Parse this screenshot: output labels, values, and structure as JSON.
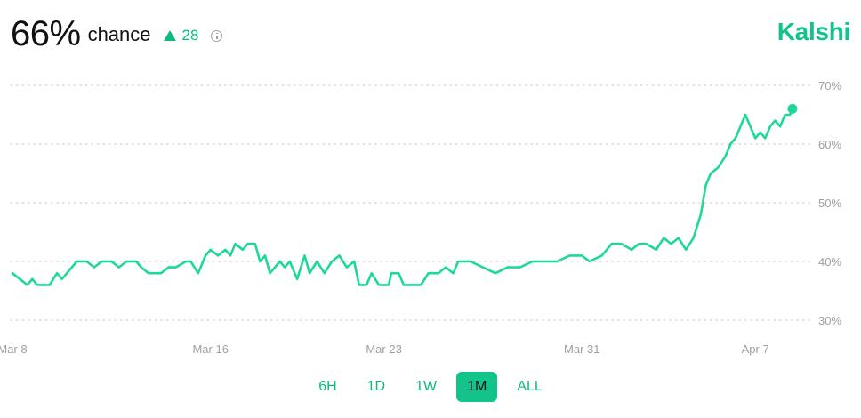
{
  "header": {
    "percent": "66%",
    "chance_label": "chance",
    "delta": "28",
    "delta_direction": "up",
    "info_icon": "info-circle-icon",
    "brand": "Kalshi"
  },
  "colors": {
    "line": "#1fd79b",
    "brand": "#11c48c",
    "delta": "#11b783",
    "grid": "#d0d0d0",
    "axis_text": "#a0a0a0",
    "active_tab_bg": "#12c48b"
  },
  "tabs": [
    {
      "label": "6H",
      "active": false
    },
    {
      "label": "1D",
      "active": false
    },
    {
      "label": "1W",
      "active": false
    },
    {
      "label": "1M",
      "active": true
    },
    {
      "label": "ALL",
      "active": false
    }
  ],
  "chart_data": {
    "type": "line",
    "x_ticks": [
      {
        "label": "Mar 8",
        "day": 0
      },
      {
        "label": "Mar 16",
        "day": 8
      },
      {
        "label": "Mar 23",
        "day": 15
      },
      {
        "label": "Mar 31",
        "day": 23
      },
      {
        "label": "Apr 7",
        "day": 30
      }
    ],
    "y_ticks": [
      30,
      40,
      50,
      60,
      70
    ],
    "y_tick_labels": [
      "30%",
      "40%",
      "50%",
      "60%",
      "70%"
    ],
    "ylim": [
      28,
      72
    ],
    "xlim": [
      0,
      31
    ],
    "grid": true,
    "grid_style": "dotted",
    "end_marker": true,
    "series": [
      {
        "points": [
          [
            0,
            38
          ],
          [
            0.3,
            37
          ],
          [
            0.6,
            36
          ],
          [
            0.8,
            37
          ],
          [
            1.0,
            36
          ],
          [
            1.5,
            36
          ],
          [
            1.8,
            38
          ],
          [
            2.0,
            37
          ],
          [
            2.2,
            38
          ],
          [
            2.4,
            39
          ],
          [
            2.6,
            40
          ],
          [
            3.0,
            40
          ],
          [
            3.3,
            39
          ],
          [
            3.6,
            40
          ],
          [
            4.0,
            40
          ],
          [
            4.3,
            39
          ],
          [
            4.6,
            40
          ],
          [
            5.0,
            40
          ],
          [
            5.2,
            39
          ],
          [
            5.5,
            38
          ],
          [
            6.0,
            38
          ],
          [
            6.3,
            39
          ],
          [
            6.6,
            39
          ],
          [
            7.0,
            40
          ],
          [
            7.2,
            40
          ],
          [
            7.5,
            38
          ],
          [
            7.8,
            41
          ],
          [
            8.0,
            42
          ],
          [
            8.3,
            41
          ],
          [
            8.6,
            42
          ],
          [
            8.8,
            41
          ],
          [
            9.0,
            43
          ],
          [
            9.3,
            42
          ],
          [
            9.5,
            43
          ],
          [
            9.8,
            43
          ],
          [
            10.0,
            40
          ],
          [
            10.2,
            41
          ],
          [
            10.4,
            38
          ],
          [
            10.6,
            39
          ],
          [
            10.8,
            40
          ],
          [
            11.0,
            39
          ],
          [
            11.2,
            40
          ],
          [
            11.5,
            37
          ],
          [
            11.8,
            41
          ],
          [
            12.0,
            38
          ],
          [
            12.3,
            40
          ],
          [
            12.6,
            38
          ],
          [
            12.9,
            40
          ],
          [
            13.2,
            41
          ],
          [
            13.5,
            39
          ],
          [
            13.8,
            40
          ],
          [
            14.0,
            36
          ],
          [
            14.3,
            36
          ],
          [
            14.5,
            38
          ],
          [
            14.8,
            36
          ],
          [
            15.2,
            36
          ],
          [
            15.3,
            38
          ],
          [
            15.6,
            38
          ],
          [
            15.8,
            36
          ],
          [
            16.5,
            36
          ],
          [
            16.8,
            38
          ],
          [
            17.2,
            38
          ],
          [
            17.5,
            39
          ],
          [
            17.8,
            38
          ],
          [
            18.0,
            40
          ],
          [
            18.5,
            40
          ],
          [
            19.0,
            39
          ],
          [
            19.5,
            38
          ],
          [
            20.0,
            39
          ],
          [
            20.5,
            39
          ],
          [
            21.0,
            40
          ],
          [
            21.5,
            40
          ],
          [
            22.0,
            40
          ],
          [
            22.5,
            41
          ],
          [
            23.0,
            41
          ],
          [
            23.3,
            40
          ],
          [
            23.8,
            41
          ],
          [
            24.2,
            43
          ],
          [
            24.6,
            43
          ],
          [
            25.0,
            42
          ],
          [
            25.3,
            43
          ],
          [
            25.6,
            43
          ],
          [
            26.0,
            42
          ],
          [
            26.3,
            44
          ],
          [
            26.6,
            43
          ],
          [
            26.9,
            44
          ],
          [
            27.2,
            42
          ],
          [
            27.5,
            44
          ],
          [
            27.8,
            48
          ],
          [
            28.0,
            53
          ],
          [
            28.2,
            55
          ],
          [
            28.5,
            56
          ],
          [
            28.8,
            58
          ],
          [
            29.0,
            60
          ],
          [
            29.2,
            61
          ],
          [
            29.4,
            63
          ],
          [
            29.6,
            65
          ],
          [
            29.8,
            63
          ],
          [
            30.0,
            61
          ],
          [
            30.2,
            62
          ],
          [
            30.4,
            61
          ],
          [
            30.6,
            63
          ],
          [
            30.8,
            64
          ],
          [
            31.0,
            63
          ],
          [
            31.2,
            65
          ],
          [
            31.4,
            65
          ],
          [
            31.5,
            66
          ]
        ]
      }
    ]
  }
}
